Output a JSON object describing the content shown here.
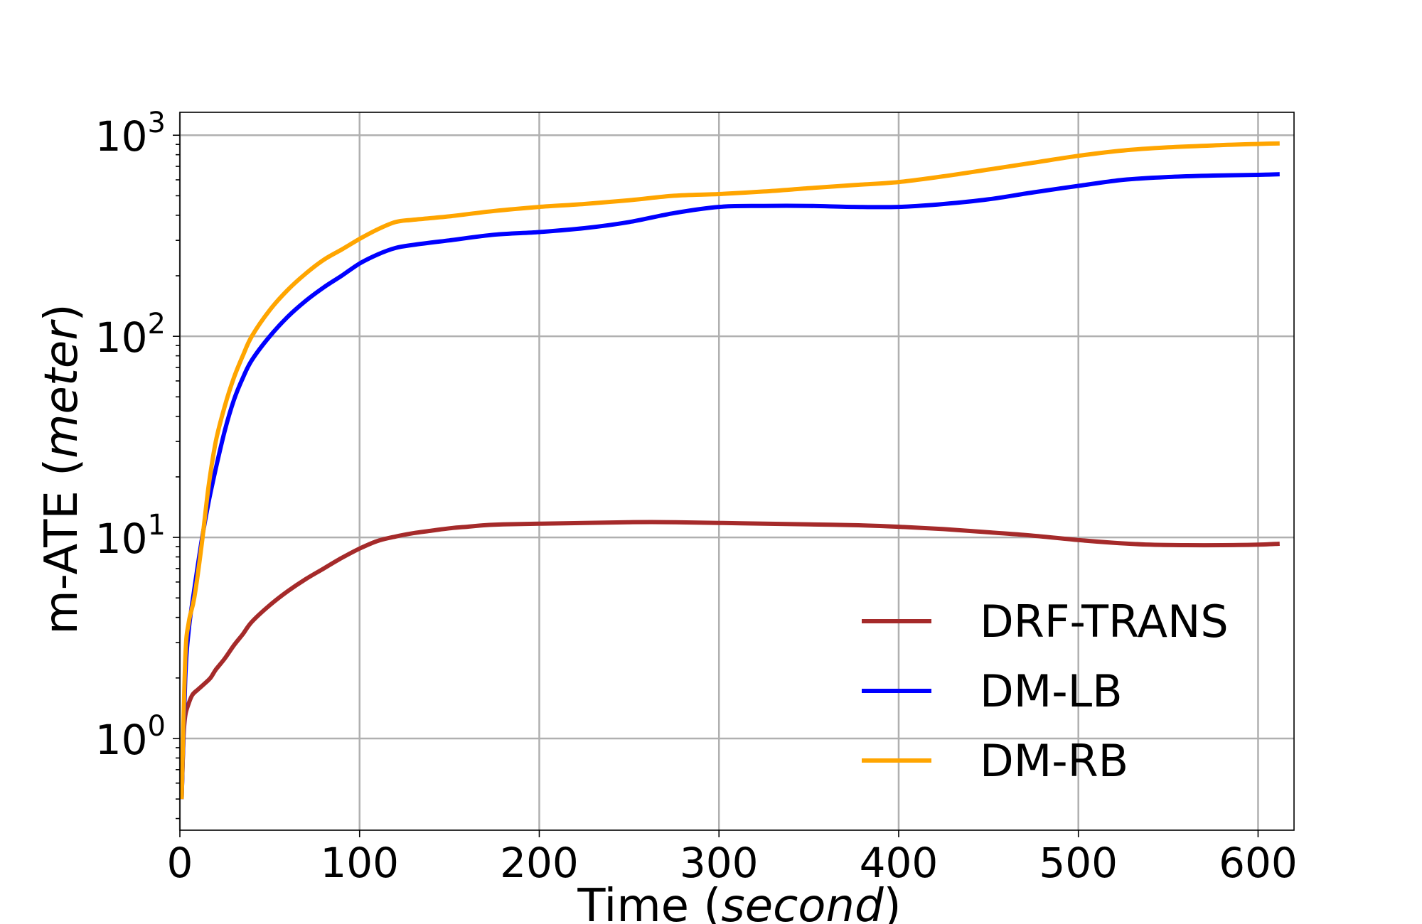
{
  "chart_data": {
    "type": "line",
    "xlabel": {
      "prefix": "Time (",
      "italic": "second",
      "suffix": ")"
    },
    "ylabel": {
      "prefix": "m-ATE (",
      "italic": "meter",
      "suffix": ")"
    },
    "xlim": [
      0,
      620
    ],
    "ylim": [
      0.35,
      1300
    ],
    "yscale": "log",
    "grid": true,
    "legend_position": "lower-right",
    "x_ticks": [
      {
        "value": 0,
        "label": "0"
      },
      {
        "value": 100,
        "label": "100"
      },
      {
        "value": 200,
        "label": "200"
      },
      {
        "value": 300,
        "label": "300"
      },
      {
        "value": 400,
        "label": "400"
      },
      {
        "value": 500,
        "label": "500"
      },
      {
        "value": 600,
        "label": "600"
      }
    ],
    "y_ticks": [
      {
        "value": 1,
        "base": "10",
        "exponent": "0"
      },
      {
        "value": 10,
        "base": "10",
        "exponent": "1"
      },
      {
        "value": 100,
        "base": "10",
        "exponent": "2"
      },
      {
        "value": 1000,
        "base": "10",
        "exponent": "3"
      }
    ],
    "series": [
      {
        "name": "DRF-TRANS",
        "color": "#a52a2a",
        "x": [
          1,
          2,
          3,
          5,
          7,
          10,
          13,
          17,
          20,
          25,
          30,
          35,
          40,
          50,
          60,
          70,
          80,
          90,
          100,
          110,
          120,
          130,
          140,
          150,
          160,
          170,
          180,
          200,
          225,
          250,
          275,
          300,
          325,
          350,
          375,
          400,
          425,
          450,
          475,
          500,
          520,
          540,
          560,
          580,
          600,
          612
        ],
        "y": [
          0.5,
          1.0,
          1.3,
          1.5,
          1.65,
          1.75,
          1.85,
          2.0,
          2.2,
          2.5,
          2.9,
          3.3,
          3.8,
          4.6,
          5.4,
          6.2,
          7.0,
          7.9,
          8.8,
          9.6,
          10.1,
          10.5,
          10.8,
          11.1,
          11.3,
          11.5,
          11.6,
          11.7,
          11.8,
          11.9,
          11.9,
          11.8,
          11.7,
          11.6,
          11.5,
          11.3,
          11.0,
          10.6,
          10.2,
          9.7,
          9.4,
          9.2,
          9.15,
          9.15,
          9.2,
          9.3
        ]
      },
      {
        "name": "DM-LB",
        "color": "#0000ff",
        "x": [
          1,
          3,
          5,
          8,
          12,
          16,
          20,
          25,
          30,
          35,
          40,
          50,
          60,
          70,
          80,
          90,
          100,
          110,
          120,
          130,
          150,
          175,
          200,
          225,
          250,
          275,
          300,
          325,
          350,
          375,
          400,
          425,
          450,
          475,
          500,
          525,
          550,
          575,
          600,
          612
        ],
        "y": [
          0.5,
          2.0,
          3.5,
          5.5,
          9.5,
          15,
          22,
          34,
          48,
          62,
          76,
          100,
          125,
          150,
          175,
          200,
          230,
          255,
          275,
          285,
          300,
          320,
          330,
          345,
          370,
          410,
          440,
          445,
          445,
          440,
          440,
          455,
          480,
          520,
          560,
          600,
          620,
          630,
          635,
          640
        ]
      },
      {
        "name": "DM-RB",
        "color": "#ffa500",
        "x": [
          1,
          3,
          5,
          8,
          12,
          16,
          20,
          25,
          30,
          35,
          40,
          50,
          60,
          70,
          80,
          90,
          100,
          110,
          120,
          130,
          150,
          175,
          200,
          225,
          250,
          275,
          300,
          325,
          350,
          375,
          400,
          425,
          450,
          475,
          500,
          525,
          550,
          575,
          600,
          612
        ],
        "y": [
          0.5,
          2.5,
          3.8,
          5.0,
          9.0,
          18,
          30,
          45,
          62,
          80,
          100,
          135,
          170,
          205,
          240,
          270,
          305,
          340,
          370,
          380,
          395,
          420,
          440,
          455,
          475,
          500,
          510,
          525,
          545,
          565,
          585,
          625,
          675,
          730,
          790,
          840,
          870,
          890,
          905,
          910
        ]
      }
    ]
  }
}
